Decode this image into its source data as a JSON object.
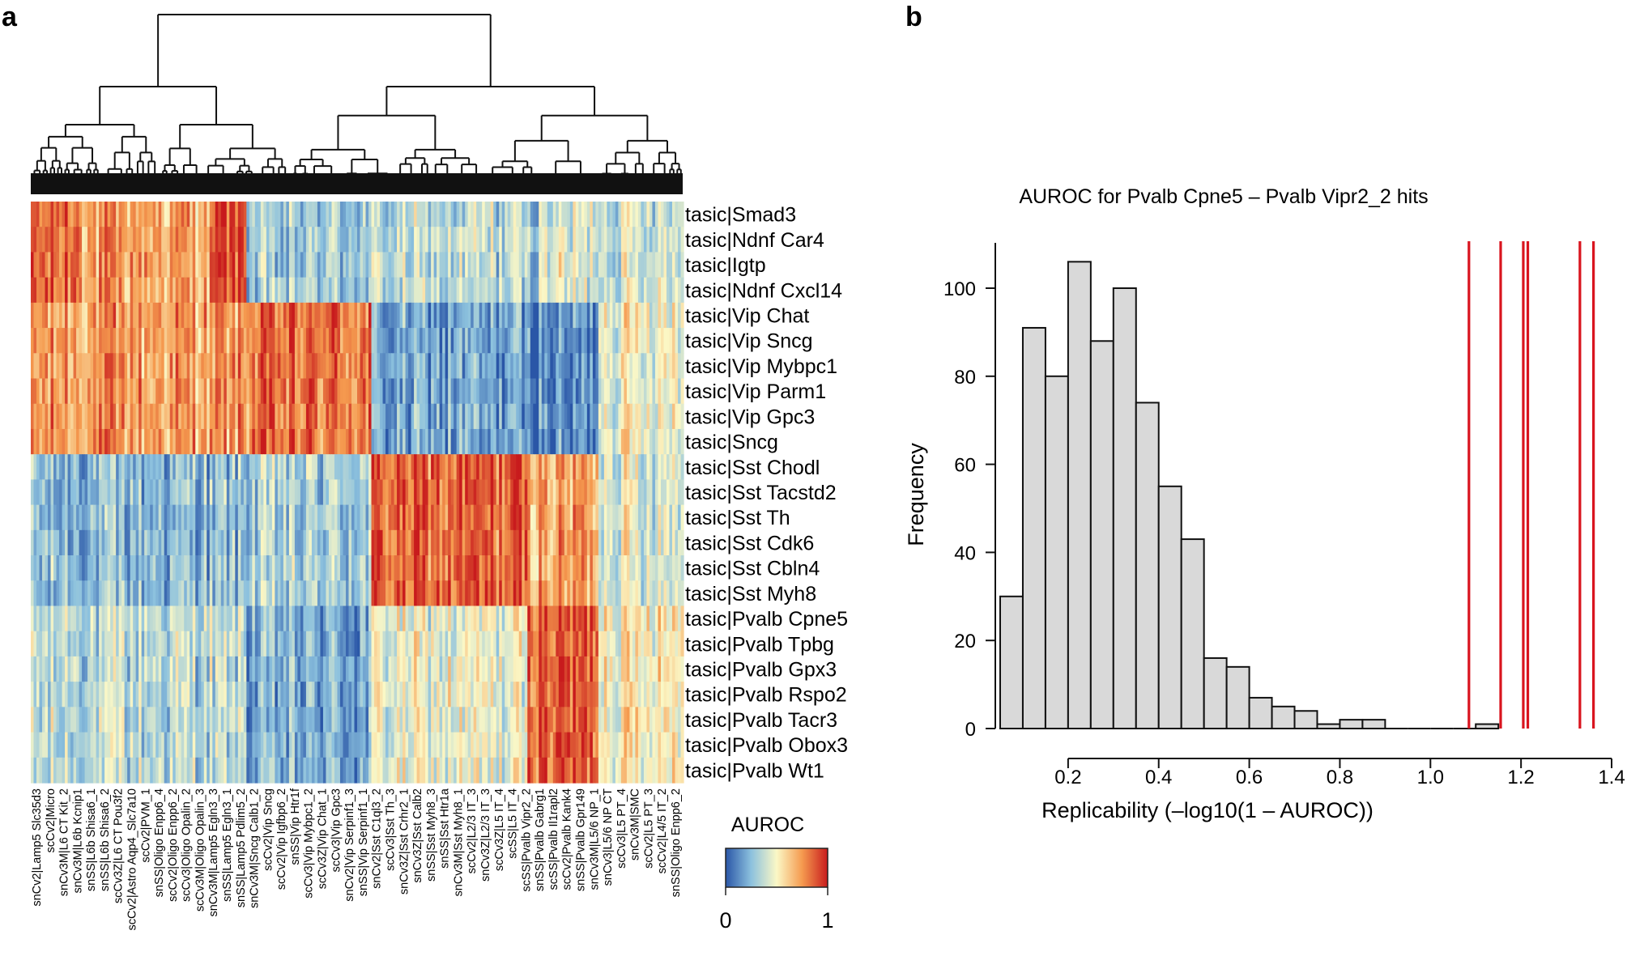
{
  "panel_a": {
    "letter": "a"
  },
  "panel_b": {
    "letter": "b"
  },
  "chart_data": [
    {
      "type": "heatmap",
      "panel": "a",
      "description_hidden": false,
      "rows": [
        "tasic|Smad3",
        "tasic|Ndnf Car4",
        "tasic|Igtp",
        "tasic|Ndnf Cxcl14",
        "tasic|Vip Chat",
        "tasic|Vip Sncg",
        "tasic|Vip Mybpc1",
        "tasic|Vip Parm1",
        "tasic|Vip Gpc3",
        "tasic|Sncg",
        "tasic|Sst Chodl",
        "tasic|Sst Tacstd2",
        "tasic|Sst Th",
        "tasic|Sst Cdk6",
        "tasic|Sst Cbln4",
        "tasic|Sst Myh8",
        "tasic|Pvalb Cpne5",
        "tasic|Pvalb Tpbg",
        "tasic|Pvalb Gpx3",
        "tasic|Pvalb Rspo2",
        "tasic|Pvalb Tacr3",
        "tasic|Pvalb Obox3",
        "tasic|Pvalb Wt1"
      ],
      "column_labels": [
        "snCv2|Lamp5 Slc35d3",
        "scCv2|Micro",
        "snCv3M|L6 CT Kit_2",
        "snCv3M|L6b Kcnip1",
        "snSS|L6b Shisa6_1",
        "snSS|L6b Shisa6_2",
        "scCv3Z|L6 CT Pou3f2",
        "scCv2|Astro Aqp4_Slc7a10",
        "scCv2|PVM_1",
        "snSS|Oligo Enpp6_4",
        "scCv2|Oligo Enpp6_2",
        "scCv3|Oligo Opalin_2",
        "scCv3M|Oligo Opalin_3",
        "snCv3M|Lamp5 Egln3_3",
        "snSS|Lamp5 Egln3_1",
        "snSS|Lamp5 Pdlim5_2",
        "snCv3M|Sncg Calb1_2",
        "scCv2|Vip Sncg",
        "scCv2|Vip Igfbp6_2",
        "snSS|Vip Htr1f",
        "scCv3|Vip Mybpc1_2",
        "scCv3Z|Vip Chat_1",
        "scCv3|Vip Gpc3",
        "snCv2|Vip Serpinf1_3",
        "snSS|Vip Serpinf1_1",
        "snCv2|Sst C1ql3_2",
        "scCv3|Sst Th_3",
        "snCv3Z|Sst Crhr2_1",
        "snCv3Z|Sst Calb2",
        "snSS|Sst Myh8_3",
        "snSS|Sst Htr1a",
        "snCv3M|Sst Myh8_1",
        "scCv2|L2/3 IT_3",
        "snCv3Z|L2/3 IT_3",
        "scCv3Z|L5 IT_4",
        "scSS|L5 IT_4",
        "scSS|Pvalb Vipr2_2",
        "snSS|Pvalb Gabrg1",
        "scSS|Pvalb Il1rapl2",
        "scCv2|Pvalb Kank4",
        "snSS|Pvalb Gpr149",
        "snCv3M|L5/6 NP_1",
        "snCv3|L5/6 NP CT",
        "scCv3|L5 PT_4",
        "snCv3M|SMC",
        "scCv2|L5 PT_3",
        "scCv2|L4/5 IT_2",
        "snSS|Oligo Enpp6_2"
      ],
      "blocks": [
        {
          "rows": [
            0,
            3
          ],
          "ranges": [
            [
              0.0,
              0.08,
              0.85
            ],
            [
              0.08,
              0.28,
              0.72
            ],
            [
              0.28,
              0.33,
              0.9
            ],
            [
              0.33,
              0.52,
              0.28
            ],
            [
              0.52,
              0.78,
              0.35
            ],
            [
              0.78,
              1.0,
              0.42
            ]
          ]
        },
        {
          "rows": [
            4,
            9
          ],
          "ranges": [
            [
              0.0,
              0.33,
              0.73
            ],
            [
              0.33,
              0.52,
              0.82
            ],
            [
              0.52,
              0.76,
              0.18
            ],
            [
              0.76,
              0.87,
              0.12
            ],
            [
              0.87,
              1.0,
              0.5
            ]
          ]
        },
        {
          "rows": [
            10,
            15
          ],
          "ranges": [
            [
              0.0,
              0.33,
              0.25
            ],
            [
              0.33,
              0.52,
              0.3
            ],
            [
              0.52,
              0.76,
              0.85
            ],
            [
              0.76,
              0.87,
              0.72
            ],
            [
              0.87,
              1.0,
              0.45
            ]
          ]
        },
        {
          "rows": [
            16,
            22
          ],
          "ranges": [
            [
              0.0,
              0.33,
              0.35
            ],
            [
              0.33,
              0.52,
              0.2
            ],
            [
              0.52,
              0.76,
              0.45
            ],
            [
              0.76,
              0.87,
              0.88
            ],
            [
              0.87,
              1.0,
              0.55
            ]
          ]
        }
      ],
      "legend": {
        "title": "AUROC",
        "min_label": "0",
        "max_label": "1"
      }
    },
    {
      "type": "bar",
      "panel": "b",
      "title": "AUROC for Pvalb Cpne5 – Pvalb Vipr2_2 hits",
      "xlabel": "Replicability (–log10(1 – AUROC))",
      "ylabel": "Frequency",
      "bin_width": 0.05,
      "bin_start": 0.05,
      "values": [
        30,
        91,
        80,
        106,
        88,
        100,
        74,
        55,
        43,
        16,
        14,
        7,
        5,
        4,
        1,
        2,
        2,
        0,
        0,
        0,
        0,
        1
      ],
      "xlim": [
        0.0,
        1.4
      ],
      "ylim": [
        0,
        110
      ],
      "xticks": [
        "0.2",
        "0.4",
        "0.6",
        "0.8",
        "1.0",
        "1.2",
        "1.4"
      ],
      "xtick_values": [
        0.2,
        0.4,
        0.6,
        0.8,
        1.0,
        1.2,
        1.4
      ],
      "yticks": [
        "0",
        "20",
        "40",
        "60",
        "80",
        "100"
      ],
      "ytick_values": [
        0,
        20,
        40,
        60,
        80,
        100
      ],
      "hit_lines": [
        1.085,
        1.155,
        1.205,
        1.215,
        1.33,
        1.36
      ],
      "colors": {
        "bar_fill": "#d9d9d9",
        "hit_line": "#d9141e"
      }
    }
  ],
  "colors": {
    "low": "#2a56a7",
    "mid_low": "#8cc1de",
    "mid": "#fbf8c6",
    "mid_high": "#f59a4f",
    "high": "#c81b1d"
  }
}
